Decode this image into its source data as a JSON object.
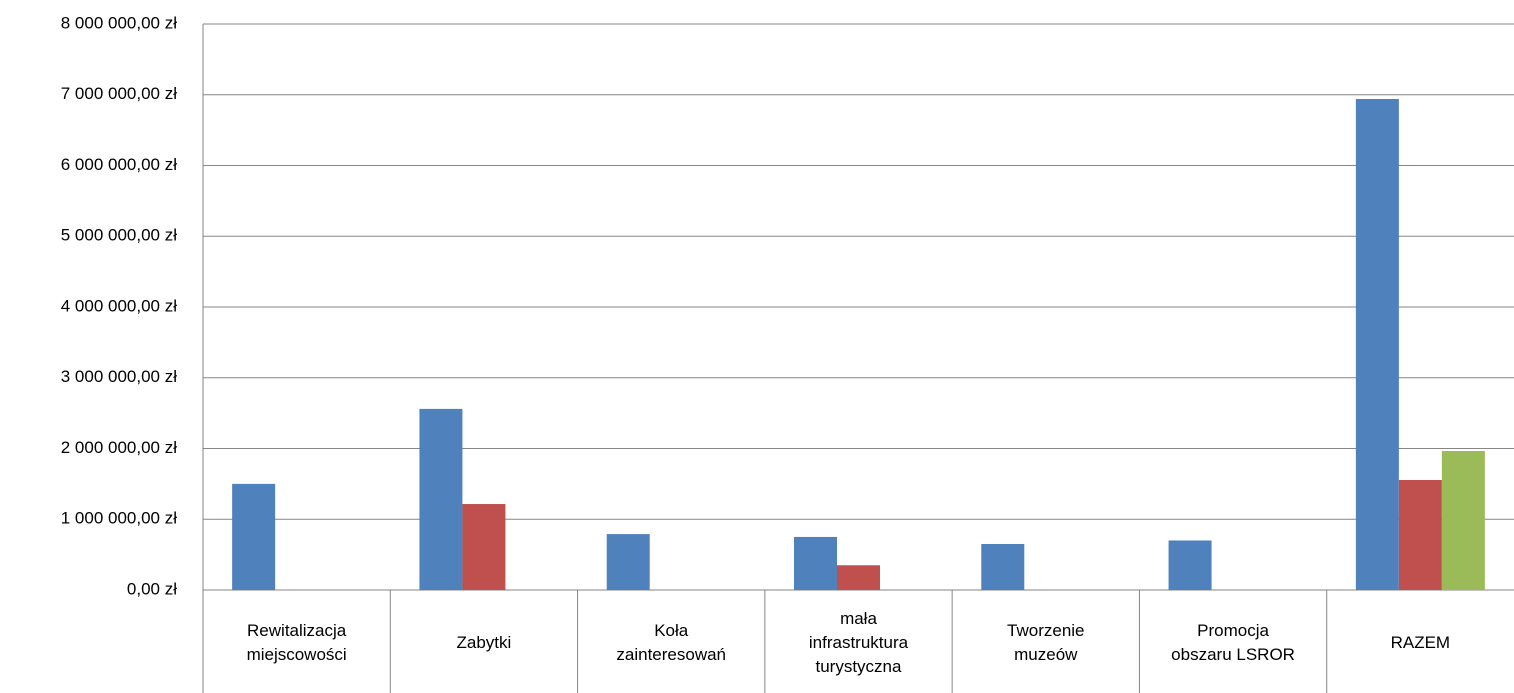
{
  "chart_data": {
    "type": "bar",
    "categories": [
      "Rewitalizacja miejscowości",
      "Zabytki",
      "Koła zainteresowań",
      "mała infrastruktura turystyczna",
      "Tworzenie muzeów",
      "Promocja obszaru LSROR",
      "RAZEM"
    ],
    "series": [
      {
        "color": "#4f81bd",
        "values": [
          1500000,
          2560000,
          790000,
          750000,
          650000,
          700000,
          6940000
        ]
      },
      {
        "color": "#c0504d",
        "values": [
          0,
          1215000,
          0,
          350000,
          0,
          0,
          1555000
        ]
      },
      {
        "color": "#9bbb59",
        "values": [
          0,
          0,
          0,
          0,
          0,
          0,
          1965000
        ]
      }
    ],
    "ylim": [
      0,
      8000000
    ],
    "yticks": [
      {
        "value": 0,
        "label": "0,00 zł"
      },
      {
        "value": 1000000,
        "label": "1 000 000,00 zł"
      },
      {
        "value": 2000000,
        "label": "2 000 000,00 zł"
      },
      {
        "value": 3000000,
        "label": "3 000 000,00 zł"
      },
      {
        "value": 4000000,
        "label": "4 000 000,00 zł"
      },
      {
        "value": 5000000,
        "label": "5 000 000,00 zł"
      },
      {
        "value": 6000000,
        "label": "6 000 000,00 zł"
      },
      {
        "value": 7000000,
        "label": "7 000 000,00 zł"
      },
      {
        "value": 8000000,
        "label": "8 000 000,00 zł"
      }
    ],
    "grid": true
  }
}
